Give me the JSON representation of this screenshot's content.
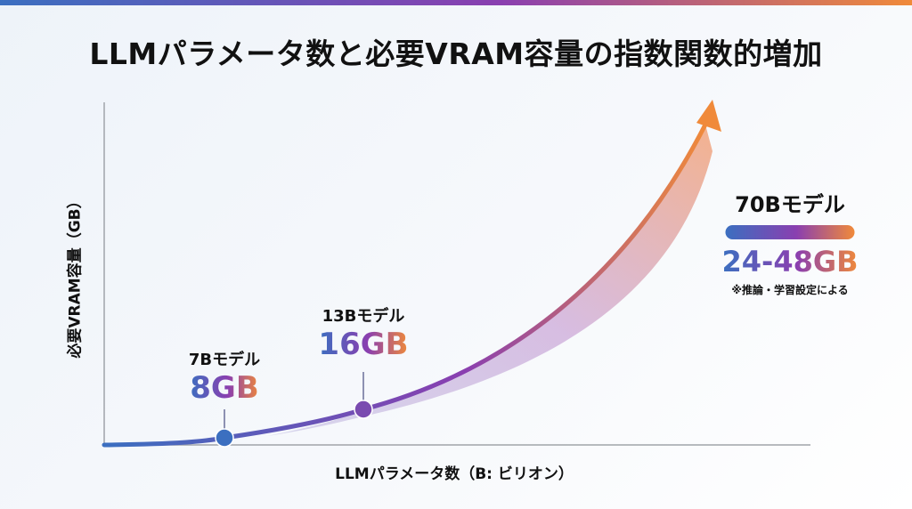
{
  "title": "LLMパラメータ数と必要VRAM容量の指数関数的増加",
  "colors": {
    "gradient_start": "#3b6fc0",
    "gradient_mid": "#8a3fb0",
    "gradient_end": "#f08a3a"
  },
  "chart_data": {
    "type": "line",
    "title": "LLMパラメータ数と必要VRAM容量の指数関数的増加",
    "xlabel": "LLMパラメータ数（B: ビリオン）",
    "ylabel": "必要VRAM容量（GB）",
    "grid": false,
    "points": [
      {
        "model": "7Bモデル",
        "params_b": 7,
        "vram_label": "8GB",
        "vram_gb": 8
      },
      {
        "model": "13Bモデル",
        "params_b": 13,
        "vram_label": "16GB",
        "vram_gb": 16
      },
      {
        "model": "70Bモデル",
        "params_b": 70,
        "vram_label": "24-48GB",
        "vram_gb": [
          24,
          48
        ],
        "note": "※推論・学習設定による"
      }
    ]
  }
}
